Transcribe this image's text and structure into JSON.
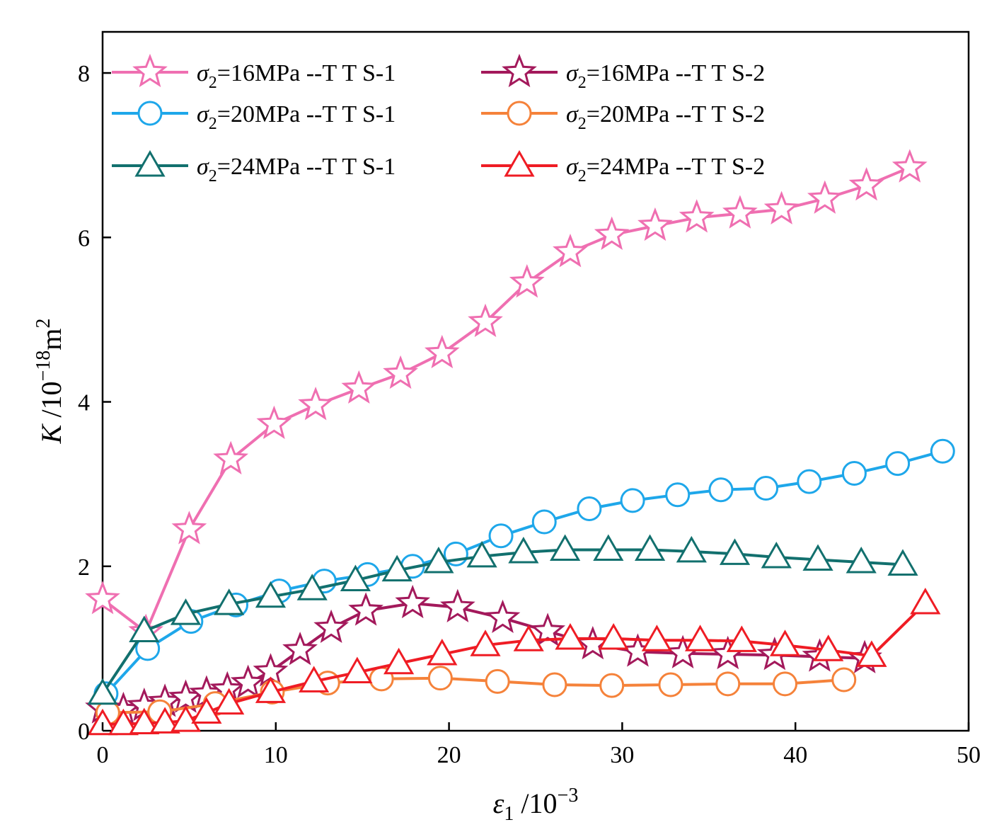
{
  "chart_data": {
    "type": "line",
    "title": "",
    "xlabel": {
      "symbol": "ε",
      "subscript": "1",
      "unit": " /10",
      "exponent": "−3"
    },
    "ylabel": {
      "symbol": "K",
      "unit": " /10",
      "exponent": "−18",
      "unit_tail": "m",
      "unit_power": "2"
    },
    "xlim": [
      0,
      50
    ],
    "ylim": [
      0,
      8.5
    ],
    "xticks": [
      0,
      10,
      20,
      30,
      40,
      50
    ],
    "yticks": [
      0,
      2,
      4,
      6,
      8
    ],
    "xtick_labels": [
      "0",
      "10",
      "20",
      "30",
      "40",
      "50"
    ],
    "ytick_labels": [
      "0",
      "2",
      "4",
      "6",
      "8"
    ],
    "grid": false,
    "legend_position": "top-left, 2 columns",
    "series": [
      {
        "name": "σ2=16MPa --T T S-1",
        "legend": {
          "symbol": "σ",
          "sub": "2",
          "text": "=16MPa --T T S-1"
        },
        "color": "#ef6fb1",
        "marker": "star",
        "x": [
          0,
          2.5,
          5,
          7.4,
          9.9,
          12.3,
          14.8,
          17.2,
          19.6,
          22.1,
          24.5,
          27,
          29.4,
          31.9,
          34.3,
          36.8,
          39.2,
          41.7,
          44.1,
          46.6
        ],
        "y": [
          1.6,
          1.2,
          2.45,
          3.3,
          3.73,
          3.96,
          4.16,
          4.34,
          4.59,
          4.97,
          5.45,
          5.82,
          6.03,
          6.14,
          6.24,
          6.29,
          6.34,
          6.47,
          6.63,
          6.85
        ]
      },
      {
        "name": "σ2=16MPa --T T S-2",
        "legend": {
          "symbol": "σ",
          "sub": "2",
          "text": "=16MPa --T T S-2"
        },
        "color": "#a3195b",
        "marker": "star",
        "x": [
          0,
          1.2,
          2.4,
          3.6,
          4.8,
          6,
          7.2,
          8.4,
          9.7,
          11.4,
          13.2,
          15.2,
          17.9,
          20.5,
          23.1,
          25.7,
          28.3,
          30.9,
          33.5,
          36.1,
          38.8,
          41.4,
          44
        ],
        "y": [
          0.27,
          0.25,
          0.3,
          0.35,
          0.4,
          0.45,
          0.5,
          0.58,
          0.72,
          0.98,
          1.25,
          1.46,
          1.55,
          1.5,
          1.37,
          1.21,
          1.05,
          0.96,
          0.94,
          0.93,
          0.92,
          0.9,
          0.88
        ]
      },
      {
        "name": "σ2=20MPa --T T S-1",
        "legend": {
          "symbol": "σ",
          "sub": "2",
          "text": "=20MPa --T T S-1"
        },
        "color": "#1ea7ea",
        "marker": "circle",
        "x": [
          0.2,
          2.6,
          5.1,
          7.7,
          10.2,
          12.8,
          15.3,
          17.9,
          20.4,
          23,
          25.5,
          28.1,
          30.6,
          33.2,
          35.7,
          38.3,
          40.8,
          43.4,
          45.9,
          48.5
        ],
        "y": [
          0.45,
          1.0,
          1.33,
          1.53,
          1.7,
          1.82,
          1.9,
          2.0,
          2.15,
          2.37,
          2.54,
          2.7,
          2.8,
          2.87,
          2.93,
          2.95,
          3.03,
          3.13,
          3.25,
          3.4
        ]
      },
      {
        "name": "σ2=20MPa --T T S-2",
        "legend": {
          "symbol": "σ",
          "sub": "2",
          "text": "=20MPa --T T S-2"
        },
        "color": "#f5823a",
        "marker": "circle",
        "x": [
          0.3,
          3.3,
          6.5,
          9.8,
          13,
          16.1,
          19.5,
          22.8,
          26.1,
          29.4,
          32.8,
          36.1,
          39.4,
          42.8
        ],
        "y": [
          0.22,
          0.23,
          0.33,
          0.47,
          0.58,
          0.63,
          0.64,
          0.6,
          0.56,
          0.55,
          0.56,
          0.57,
          0.57,
          0.62
        ]
      },
      {
        "name": "σ2=24MPa --T T S-1",
        "legend": {
          "symbol": "σ",
          "sub": "2",
          "text": "=24MPa --T T S-1"
        },
        "color": "#12706e",
        "marker": "triangle",
        "x": [
          0,
          2.4,
          4.8,
          7.3,
          9.7,
          12.1,
          14.6,
          17,
          19.4,
          21.9,
          24.3,
          26.7,
          29.2,
          31.6,
          34,
          36.5,
          38.9,
          41.3,
          43.8,
          46.2
        ],
        "y": [
          0.45,
          1.21,
          1.42,
          1.54,
          1.63,
          1.72,
          1.83,
          1.95,
          2.05,
          2.12,
          2.17,
          2.2,
          2.2,
          2.2,
          2.18,
          2.15,
          2.11,
          2.08,
          2.05,
          2.02
        ]
      },
      {
        "name": "σ2=24MPa --T T S-2",
        "legend": {
          "symbol": "σ",
          "sub": "2",
          "text": "=24MPa --T T S-2"
        },
        "color": "#ef1c24",
        "marker": "triangle",
        "x": [
          0,
          1.2,
          2.4,
          3.6,
          4.8,
          6,
          7.3,
          9.7,
          12.2,
          14.7,
          17.1,
          19.6,
          22.1,
          24.6,
          27,
          29.5,
          32,
          34.5,
          36.9,
          39.4,
          41.9,
          44.4,
          47.5
        ],
        "y": [
          0.08,
          0.08,
          0.09,
          0.1,
          0.12,
          0.22,
          0.33,
          0.47,
          0.6,
          0.71,
          0.82,
          0.93,
          1.04,
          1.1,
          1.12,
          1.12,
          1.1,
          1.1,
          1.09,
          1.04,
          0.98,
          0.91,
          1.55
        ]
      }
    ]
  }
}
